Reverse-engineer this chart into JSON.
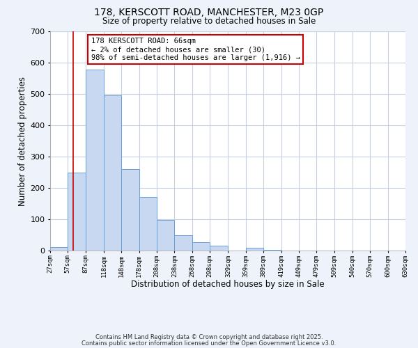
{
  "title1": "178, KERSCOTT ROAD, MANCHESTER, M23 0GP",
  "title2": "Size of property relative to detached houses in Sale",
  "xlabel": "Distribution of detached houses by size in Sale",
  "ylabel": "Number of detached properties",
  "bar_left_edges": [
    27,
    57,
    87,
    118,
    148,
    178,
    208,
    238,
    268,
    298,
    329,
    359,
    389,
    419,
    449,
    479,
    509,
    540,
    570,
    600
  ],
  "bar_heights": [
    12,
    248,
    578,
    496,
    260,
    172,
    97,
    48,
    27,
    15,
    0,
    10,
    2,
    0,
    0,
    0,
    0,
    0,
    0,
    0
  ],
  "bar_widths": [
    30,
    30,
    31,
    30,
    30,
    30,
    30,
    30,
    30,
    31,
    30,
    30,
    30,
    30,
    30,
    30,
    31,
    30,
    30,
    30
  ],
  "tick_labels": [
    "27sqm",
    "57sqm",
    "87sqm",
    "118sqm",
    "148sqm",
    "178sqm",
    "208sqm",
    "238sqm",
    "268sqm",
    "298sqm",
    "329sqm",
    "359sqm",
    "389sqm",
    "419sqm",
    "449sqm",
    "479sqm",
    "509sqm",
    "540sqm",
    "570sqm",
    "600sqm",
    "630sqm"
  ],
  "bar_color": "#c8d8f0",
  "bar_edge_color": "#6a9fd8",
  "vline_x": 66,
  "vline_color": "#cc0000",
  "ylim": [
    0,
    700
  ],
  "yticks": [
    0,
    100,
    200,
    300,
    400,
    500,
    600,
    700
  ],
  "annotation_title": "178 KERSCOTT ROAD: 66sqm",
  "annotation_line1": "← 2% of detached houses are smaller (30)",
  "annotation_line2": "98% of semi-detached houses are larger (1,916) →",
  "annotation_box_color": "#ffffff",
  "annotation_border_color": "#cc0000",
  "footnote1": "Contains HM Land Registry data © Crown copyright and database right 2025.",
  "footnote2": "Contains public sector information licensed under the Open Government Licence v3.0.",
  "background_color": "#eef2fa",
  "plot_background": "#ffffff"
}
